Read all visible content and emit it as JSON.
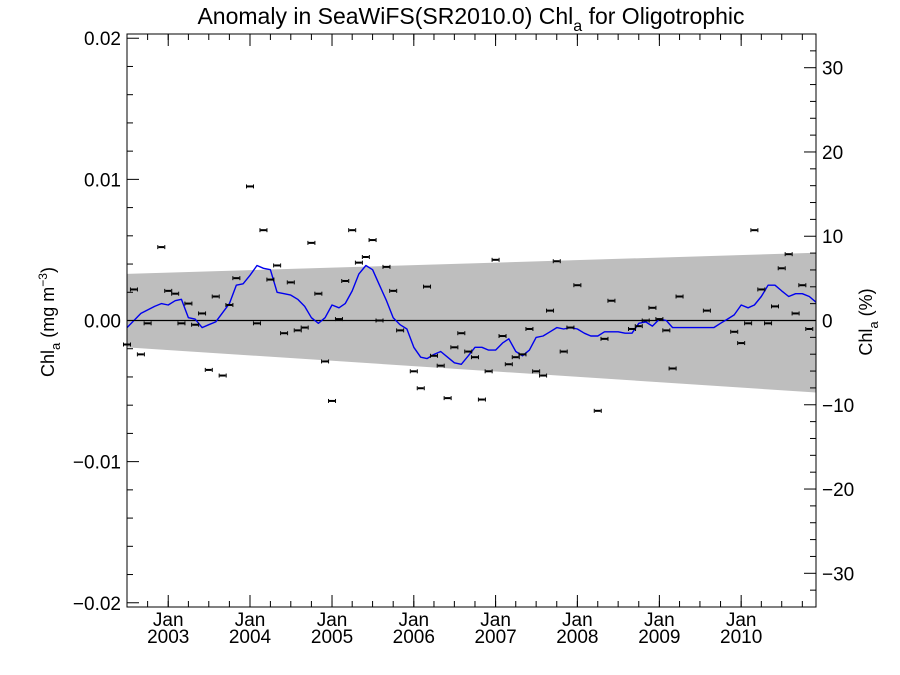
{
  "chart_data": {
    "type": "scatter",
    "title": "Anomaly in SeaWiFS(SR2010.0) Chl",
    "title_subscript": "a",
    "title_suffix": " for Oligotrophic",
    "ylabel_left": {
      "main": "Chl",
      "sub": "a",
      "rest": " (mg m",
      "sup": "−3",
      "close": ")"
    },
    "ylabel_right": {
      "main": "Chl",
      "sub": "a",
      "rest": " (%)"
    },
    "y_left_ticks": [
      "0.02",
      "0.01",
      "0.00",
      "−0.01",
      "−0.02"
    ],
    "y_left_tick_values": [
      0.02,
      0.01,
      0.0,
      -0.01,
      -0.02
    ],
    "y_left_range": [
      -0.0203,
      0.0203
    ],
    "y_right_ticks": [
      "30",
      "20",
      "10",
      "0",
      "−10",
      "−20",
      "−30"
    ],
    "y_right_tick_values": [
      30,
      20,
      10,
      0,
      -10,
      -20,
      -30
    ],
    "y_right_range": [
      -34,
      34
    ],
    "x_range": [
      "2002-07-01",
      "2010-12-01"
    ],
    "x_ticks_month": [
      "Jan",
      "Jan",
      "Jan",
      "Jan",
      "Jan",
      "Jan",
      "Jan",
      "Jan"
    ],
    "x_ticks_year": [
      "2003",
      "2004",
      "2005",
      "2006",
      "2007",
      "2008",
      "2009",
      "2010"
    ],
    "x_tick_values": [
      "2003-01-01",
      "2004-01-01",
      "2005-01-01",
      "2006-01-01",
      "2007-01-01",
      "2008-01-01",
      "2009-01-01",
      "2010-01-01"
    ],
    "grid": false,
    "band_color": "#bebebe",
    "line_color": "#0000ee",
    "points_color": "#000000",
    "uncertainty_band": [
      {
        "x": "2002-07-01",
        "upper": 0.0033,
        "lower": -0.0019
      },
      {
        "x": "2010-12-01",
        "upper": 0.0048,
        "lower": -0.0051
      }
    ],
    "series": [
      {
        "type": "points_with_error",
        "values": [
          [
            "2002-07-01",
            -0.0017
          ],
          [
            "2002-08-01",
            0.0022
          ],
          [
            "2002-09-01",
            -0.0024
          ],
          [
            "2002-10-01",
            -0.0002
          ],
          [
            "2002-12-01",
            0.0052
          ],
          [
            "2003-01-01",
            0.0021
          ],
          [
            "2003-02-01",
            0.0019
          ],
          [
            "2003-03-01",
            -0.0002
          ],
          [
            "2003-04-01",
            0.0012
          ],
          [
            "2003-05-01",
            -0.0003
          ],
          [
            "2003-06-01",
            0.0005
          ],
          [
            "2003-07-01",
            -0.0035
          ],
          [
            "2003-08-01",
            0.0017
          ],
          [
            "2003-09-01",
            -0.0039
          ],
          [
            "2003-10-01",
            0.0011
          ],
          [
            "2003-11-01",
            0.003
          ],
          [
            "2004-01-01",
            0.0095
          ],
          [
            "2004-02-01",
            -0.0002
          ],
          [
            "2004-03-01",
            0.0064
          ],
          [
            "2004-04-01",
            0.0029
          ],
          [
            "2004-05-01",
            0.0039
          ],
          [
            "2004-06-01",
            -0.0009
          ],
          [
            "2004-07-01",
            0.0027
          ],
          [
            "2004-08-01",
            -0.0007
          ],
          [
            "2004-09-01",
            -0.0005
          ],
          [
            "2004-10-01",
            0.0055
          ],
          [
            "2004-11-01",
            0.0019
          ],
          [
            "2004-12-01",
            -0.0029
          ],
          [
            "2005-01-01",
            -0.0057
          ],
          [
            "2005-02-01",
            0.0001
          ],
          [
            "2005-03-01",
            0.0028
          ],
          [
            "2005-04-01",
            0.0064
          ],
          [
            "2005-05-01",
            0.0041
          ],
          [
            "2005-06-01",
            0.0045
          ],
          [
            "2005-07-01",
            0.0057
          ],
          [
            "2005-08-01",
            0.0
          ],
          [
            "2005-09-01",
            0.0038
          ],
          [
            "2005-10-01",
            0.0021
          ],
          [
            "2005-11-01",
            -0.0007
          ],
          [
            "2006-01-01",
            -0.0036
          ],
          [
            "2006-02-01",
            -0.0048
          ],
          [
            "2006-03-01",
            0.0024
          ],
          [
            "2006-04-01",
            -0.0025
          ],
          [
            "2006-05-01",
            -0.0032
          ],
          [
            "2006-06-01",
            -0.0055
          ],
          [
            "2006-07-01",
            -0.0019
          ],
          [
            "2006-08-01",
            -0.0009
          ],
          [
            "2006-09-01",
            -0.0022
          ],
          [
            "2006-10-01",
            -0.0026
          ],
          [
            "2006-11-01",
            -0.0056
          ],
          [
            "2006-12-01",
            -0.0036
          ],
          [
            "2007-01-01",
            0.0043
          ],
          [
            "2007-02-01",
            -0.0011
          ],
          [
            "2007-03-01",
            -0.0031
          ],
          [
            "2007-04-01",
            -0.0026
          ],
          [
            "2007-05-01",
            -0.0024
          ],
          [
            "2007-06-01",
            -0.0006
          ],
          [
            "2007-07-01",
            -0.0036
          ],
          [
            "2007-08-01",
            -0.0039
          ],
          [
            "2007-09-01",
            0.0007
          ],
          [
            "2007-10-01",
            0.0042
          ],
          [
            "2007-11-01",
            -0.0022
          ],
          [
            "2007-12-01",
            -0.0005
          ],
          [
            "2008-01-01",
            0.0025
          ],
          [
            "2008-04-01",
            -0.0064
          ],
          [
            "2008-05-01",
            -0.0013
          ],
          [
            "2008-06-01",
            0.0014
          ],
          [
            "2008-09-01",
            -0.0006
          ],
          [
            "2008-10-01",
            -0.0004
          ],
          [
            "2008-11-01",
            0.0
          ],
          [
            "2008-12-01",
            0.0009
          ],
          [
            "2009-01-01",
            0.0001
          ],
          [
            "2009-02-01",
            -0.0007
          ],
          [
            "2009-03-01",
            -0.0034
          ],
          [
            "2009-04-01",
            0.0017
          ],
          [
            "2009-08-01",
            0.0007
          ],
          [
            "2009-12-01",
            -0.0008
          ],
          [
            "2010-01-01",
            -0.0016
          ],
          [
            "2010-02-01",
            -0.0002
          ],
          [
            "2010-03-01",
            0.0064
          ],
          [
            "2010-04-01",
            0.0022
          ],
          [
            "2010-05-01",
            -0.0002
          ],
          [
            "2010-06-01",
            0.001
          ],
          [
            "2010-07-01",
            0.0037
          ],
          [
            "2010-08-01",
            0.0047
          ],
          [
            "2010-09-01",
            0.0005
          ],
          [
            "2010-10-01",
            0.0025
          ],
          [
            "2010-11-01",
            -0.0006
          ]
        ]
      },
      {
        "type": "line",
        "values": [
          [
            "2002-07-01",
            -0.0005
          ],
          [
            "2002-09-01",
            0.0005
          ],
          [
            "2002-11-01",
            0.001
          ],
          [
            "2002-12-01",
            0.0012
          ],
          [
            "2003-01-01",
            0.0011
          ],
          [
            "2003-02-01",
            0.0014
          ],
          [
            "2003-03-01",
            0.0015
          ],
          [
            "2003-04-01",
            0.0002
          ],
          [
            "2003-05-01",
            0.0001
          ],
          [
            "2003-06-01",
            -0.0005
          ],
          [
            "2003-07-01",
            -0.0003
          ],
          [
            "2003-08-01",
            -0.0001
          ],
          [
            "2003-10-01",
            0.0012
          ],
          [
            "2003-11-01",
            0.0025
          ],
          [
            "2003-12-01",
            0.0026
          ],
          [
            "2004-01-01",
            0.0032
          ],
          [
            "2004-02-01",
            0.0039
          ],
          [
            "2004-03-01",
            0.0037
          ],
          [
            "2004-04-01",
            0.0036
          ],
          [
            "2004-05-01",
            0.002
          ],
          [
            "2004-06-01",
            0.0019
          ],
          [
            "2004-07-01",
            0.0018
          ],
          [
            "2004-08-01",
            0.0015
          ],
          [
            "2004-09-01",
            0.001
          ],
          [
            "2004-10-01",
            0.0002
          ],
          [
            "2004-11-01",
            -0.0002
          ],
          [
            "2004-12-01",
            0.0002
          ],
          [
            "2005-01-01",
            0.0011
          ],
          [
            "2005-02-01",
            0.0009
          ],
          [
            "2005-03-01",
            0.0012
          ],
          [
            "2005-04-01",
            0.0021
          ],
          [
            "2005-05-01",
            0.0033
          ],
          [
            "2005-06-01",
            0.0039
          ],
          [
            "2005-07-01",
            0.0036
          ],
          [
            "2005-08-01",
            0.0025
          ],
          [
            "2005-09-01",
            0.0014
          ],
          [
            "2005-10-01",
            0.0002
          ],
          [
            "2005-11-01",
            -0.0003
          ],
          [
            "2005-12-01",
            -0.0006
          ],
          [
            "2006-01-01",
            -0.0019
          ],
          [
            "2006-02-01",
            -0.0026
          ],
          [
            "2006-03-01",
            -0.0027
          ],
          [
            "2006-04-01",
            -0.0024
          ],
          [
            "2006-05-01",
            -0.0022
          ],
          [
            "2006-06-01",
            -0.0026
          ],
          [
            "2006-07-01",
            -0.003
          ],
          [
            "2006-08-01",
            -0.0031
          ],
          [
            "2006-09-01",
            -0.0025
          ],
          [
            "2006-10-01",
            -0.0019
          ],
          [
            "2006-11-01",
            -0.0019
          ],
          [
            "2006-12-01",
            -0.0021
          ],
          [
            "2007-01-01",
            -0.0021
          ],
          [
            "2007-02-01",
            -0.0016
          ],
          [
            "2007-03-01",
            -0.0013
          ],
          [
            "2007-04-01",
            -0.0022
          ],
          [
            "2007-05-01",
            -0.0025
          ],
          [
            "2007-06-01",
            -0.0021
          ],
          [
            "2007-07-01",
            -0.0012
          ],
          [
            "2007-08-01",
            -0.0011
          ],
          [
            "2007-09-01",
            -0.0008
          ],
          [
            "2007-10-01",
            -0.0005
          ],
          [
            "2007-11-01",
            -0.0006
          ],
          [
            "2007-12-01",
            -0.0005
          ],
          [
            "2008-01-01",
            -0.0006
          ],
          [
            "2008-02-01",
            -0.0009
          ],
          [
            "2008-03-01",
            -0.0011
          ],
          [
            "2008-04-01",
            -0.0011
          ],
          [
            "2008-05-01",
            -0.0008
          ],
          [
            "2008-06-01",
            -0.0008
          ],
          [
            "2008-07-01",
            -0.0008
          ],
          [
            "2008-08-01",
            -0.0009
          ],
          [
            "2008-09-01",
            -0.0009
          ],
          [
            "2008-10-01",
            -0.0002
          ],
          [
            "2008-11-01",
            -0.0001
          ],
          [
            "2008-12-01",
            -0.0004
          ],
          [
            "2009-01-01",
            0.0001
          ],
          [
            "2009-02-01",
            0.0
          ],
          [
            "2009-03-01",
            -0.0005
          ],
          [
            "2009-04-01",
            -0.0005
          ],
          [
            "2009-05-01",
            -0.0005
          ],
          [
            "2009-06-01",
            -0.0005
          ],
          [
            "2009-07-01",
            -0.0005
          ],
          [
            "2009-08-01",
            -0.0005
          ],
          [
            "2009-09-01",
            -0.0005
          ],
          [
            "2009-10-01",
            -0.0002
          ],
          [
            "2009-11-01",
            0.0001
          ],
          [
            "2009-12-01",
            0.0004
          ],
          [
            "2010-01-01",
            0.0011
          ],
          [
            "2010-02-01",
            0.0009
          ],
          [
            "2010-03-01",
            0.0011
          ],
          [
            "2010-04-01",
            0.0017
          ],
          [
            "2010-05-01",
            0.0025
          ],
          [
            "2010-06-01",
            0.0025
          ],
          [
            "2010-07-01",
            0.0021
          ],
          [
            "2010-08-01",
            0.0017
          ],
          [
            "2010-09-01",
            0.0019
          ],
          [
            "2010-10-01",
            0.0019
          ],
          [
            "2010-11-01",
            0.0017
          ],
          [
            "2010-12-01",
            0.0013
          ]
        ]
      }
    ]
  }
}
